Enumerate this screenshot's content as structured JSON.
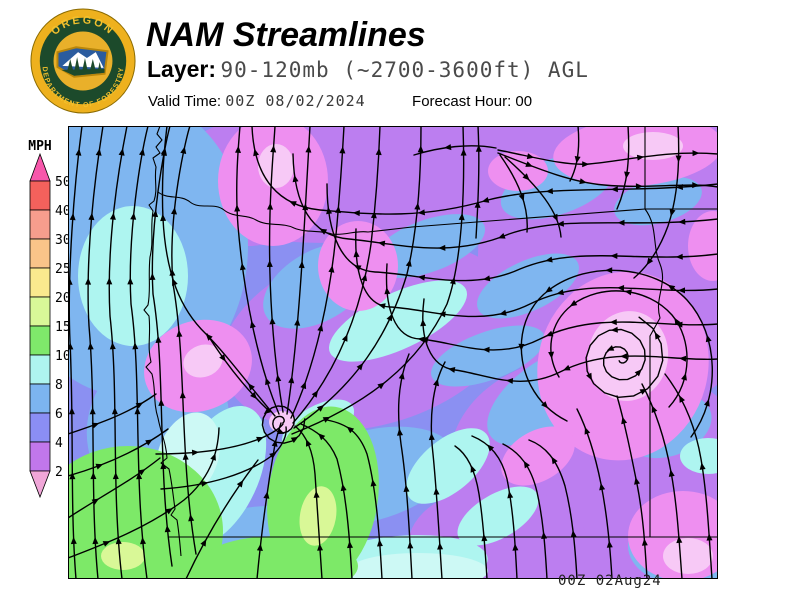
{
  "header": {
    "title": "NAM Streamlines",
    "layer_label": "Layer:",
    "layer_value": "90-120mb (~2700-3600ft) AGL",
    "valid_time_label": "Valid Time:",
    "valid_time_value": "00Z 08/02/2024",
    "forecast_hour_label": "Forecast Hour:",
    "forecast_hour_value": "00"
  },
  "logo": {
    "text_top": "OREGON",
    "text_bottom": "DEPARTMENT OF FORESTRY",
    "colors": {
      "ring": "#eeb11e",
      "field": "#1c4a2b",
      "emblem_gold": "#e9b02a",
      "emblem_blue": "#2b5c9e",
      "emblem_white": "#ffffff",
      "trees": "#1c4a2b",
      "lettering": "#f2c12e"
    }
  },
  "legend": {
    "units": "MPH",
    "labels": [
      "50",
      "40",
      "30",
      "25",
      "20",
      "15",
      "10",
      "8",
      "6",
      "4",
      "2"
    ],
    "segment_colors": [
      "#f4615c",
      "#f79d8d",
      "#f9c489",
      "#fae98e",
      "#d9f898",
      "#7fe86b",
      "#aef5ef",
      "#7cb4f0",
      "#8b8ef4",
      "#c177ec"
    ],
    "above_color": "#f757ab",
    "below_color": "#f0a6d8"
  },
  "map": {
    "caption": "00Z 02Aug24",
    "palette": {
      "purple": "#bc7ef0",
      "blueviolet": "#8b90f2",
      "lightblue": "#7fb6f0",
      "cyan": "#aef5f0",
      "palecyan": "#cdf9f5",
      "green": "#7de968",
      "ygreen": "#d9f897",
      "pink": "#ee8ff0",
      "lightpink": "#f7c9f6",
      "line": "#000000"
    }
  }
}
